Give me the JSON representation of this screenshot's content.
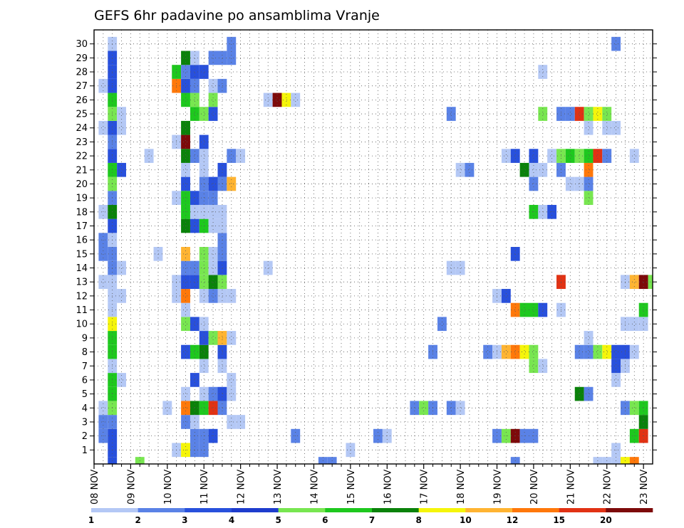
{
  "chart_data": {
    "type": "heatmap",
    "title": "GEFS 6hr padavine po ansamblima Vranje",
    "xlabel": "",
    "ylabel": "",
    "x_tick_labels": [
      "08 NOV",
      "09 NOV",
      "10 NOV",
      "11 NOV",
      "12 NOV",
      "13 NOV",
      "14 NOV",
      "15 NOV",
      "16 NOV",
      "17 NOV",
      "18 NOV",
      "19 NOV",
      "20 NOV",
      "21 NOV",
      "22 NOV",
      "23 NOV"
    ],
    "y_tick_labels": [
      "1",
      "2",
      "3",
      "4",
      "5",
      "6",
      "7",
      "8",
      "9",
      "10",
      "11",
      "12",
      "13",
      "14",
      "15",
      "16",
      "17",
      "18",
      "19",
      "20",
      "21",
      "22",
      "23",
      "24",
      "25",
      "26",
      "27",
      "28",
      "29",
      "30"
    ],
    "time_steps": 61,
    "members": 31,
    "steps_per_day": 4,
    "grid": true,
    "legend": {
      "position": "bottom",
      "labels": [
        "1",
        "2",
        "3",
        "4",
        "5",
        "6",
        "7",
        "8",
        "10",
        "12",
        "15",
        "20"
      ],
      "colors": [
        "#b4c8f5",
        "#5a82e6",
        "#2850dc",
        "#1e3ccd",
        "#78e650",
        "#1ec81e",
        "#0a820a",
        "#f5f50a",
        "#ffb432",
        "#ff780a",
        "#e13214",
        "#7d0a0a"
      ]
    },
    "palette_names": [
      "lt",
      "m",
      "b",
      "d",
      "lg",
      "g",
      "dg",
      "y",
      "o",
      "do",
      "r",
      "dr"
    ],
    "rows": {
      "0": [
        [
          2,
          "b"
        ],
        [
          5,
          "lg"
        ],
        [
          25,
          "m"
        ],
        [
          26,
          "m"
        ],
        [
          46,
          "m"
        ],
        [
          55,
          "lt"
        ],
        [
          56,
          "lt"
        ],
        [
          57,
          "lt"
        ],
        [
          58,
          "y"
        ],
        [
          59,
          "do"
        ]
      ],
      "1": [
        [
          2,
          "b"
        ],
        [
          9,
          "lt"
        ],
        [
          10,
          "y"
        ],
        [
          11,
          "m"
        ],
        [
          12,
          "m"
        ],
        [
          28,
          "lt"
        ],
        [
          57,
          "lt"
        ]
      ],
      "2": [
        [
          1,
          "m"
        ],
        [
          2,
          "b"
        ],
        [
          11,
          "m"
        ],
        [
          12,
          "m"
        ],
        [
          13,
          "b"
        ],
        [
          22,
          "m"
        ],
        [
          31,
          "m"
        ],
        [
          32,
          "lt"
        ],
        [
          44,
          "m"
        ],
        [
          45,
          "lg"
        ],
        [
          46,
          "dr"
        ],
        [
          47,
          "m"
        ],
        [
          48,
          "m"
        ],
        [
          59,
          "g"
        ],
        [
          60,
          "r"
        ]
      ],
      "3": [
        [
          1,
          "m"
        ],
        [
          2,
          "m"
        ],
        [
          10,
          "m"
        ],
        [
          11,
          "lt"
        ],
        [
          15,
          "lt"
        ],
        [
          16,
          "lt"
        ],
        [
          60,
          "dg"
        ]
      ],
      "4": [
        [
          1,
          "lt"
        ],
        [
          2,
          "lg"
        ],
        [
          8,
          "lt"
        ],
        [
          10,
          "do"
        ],
        [
          11,
          "dg"
        ],
        [
          12,
          "g"
        ],
        [
          13,
          "r"
        ],
        [
          14,
          "m"
        ],
        [
          35,
          "m"
        ],
        [
          36,
          "lg"
        ],
        [
          37,
          "m"
        ],
        [
          39,
          "m"
        ],
        [
          40,
          "lt"
        ],
        [
          58,
          "m"
        ],
        [
          59,
          "lg"
        ],
        [
          60,
          "g"
        ]
      ],
      "5": [
        [
          2,
          "g"
        ],
        [
          10,
          "lt"
        ],
        [
          12,
          "lt"
        ],
        [
          13,
          "m"
        ],
        [
          14,
          "b"
        ],
        [
          15,
          "lt"
        ],
        [
          53,
          "dg"
        ],
        [
          54,
          "m"
        ]
      ],
      "6": [
        [
          2,
          "g"
        ],
        [
          3,
          "lt"
        ],
        [
          11,
          "b"
        ],
        [
          15,
          "lt"
        ],
        [
          57,
          "lt"
        ]
      ],
      "7": [
        [
          2,
          "lt"
        ],
        [
          12,
          "lt"
        ],
        [
          14,
          "lt"
        ],
        [
          48,
          "lg"
        ],
        [
          49,
          "lt"
        ],
        [
          57,
          "b"
        ],
        [
          58,
          "lt"
        ]
      ],
      "8": [
        [
          2,
          "g"
        ],
        [
          10,
          "b"
        ],
        [
          11,
          "g"
        ],
        [
          12,
          "dg"
        ],
        [
          14,
          "b"
        ],
        [
          37,
          "m"
        ],
        [
          43,
          "m"
        ],
        [
          44,
          "lt"
        ],
        [
          45,
          "o"
        ],
        [
          46,
          "do"
        ],
        [
          47,
          "y"
        ],
        [
          48,
          "lg"
        ],
        [
          53,
          "m"
        ],
        [
          54,
          "m"
        ],
        [
          55,
          "lg"
        ],
        [
          56,
          "y"
        ],
        [
          57,
          "b"
        ],
        [
          58,
          "b"
        ],
        [
          59,
          "lt"
        ]
      ],
      "9": [
        [
          2,
          "g"
        ],
        [
          12,
          "b"
        ],
        [
          13,
          "lg"
        ],
        [
          14,
          "o"
        ],
        [
          15,
          "lt"
        ],
        [
          54,
          "lt"
        ]
      ],
      "10": [
        [
          2,
          "y"
        ],
        [
          10,
          "lg"
        ],
        [
          11,
          "b"
        ],
        [
          12,
          "lt"
        ],
        [
          38,
          "m"
        ],
        [
          58,
          "lt"
        ],
        [
          59,
          "lt"
        ],
        [
          60,
          "lt"
        ]
      ],
      "11": [
        [
          2,
          "lt"
        ],
        [
          10,
          "lt"
        ],
        [
          46,
          "do"
        ],
        [
          47,
          "g"
        ],
        [
          48,
          "g"
        ],
        [
          49,
          "b"
        ],
        [
          51,
          "lt"
        ],
        [
          60,
          "g"
        ]
      ],
      "12": [
        [
          2,
          "lt"
        ],
        [
          3,
          "lt"
        ],
        [
          9,
          "lt"
        ],
        [
          10,
          "do"
        ],
        [
          12,
          "lt"
        ],
        [
          13,
          "m"
        ],
        [
          14,
          "lt"
        ],
        [
          15,
          "lt"
        ],
        [
          44,
          "lt"
        ],
        [
          45,
          "b"
        ]
      ],
      "13": [
        [
          1,
          "lt"
        ],
        [
          2,
          "lt"
        ],
        [
          9,
          "lt"
        ],
        [
          10,
          "b"
        ],
        [
          11,
          "b"
        ],
        [
          12,
          "lg"
        ],
        [
          13,
          "dg"
        ],
        [
          14,
          "lg"
        ],
        [
          51,
          "r"
        ],
        [
          58,
          "lt"
        ],
        [
          59,
          "o"
        ],
        [
          60,
          "dr"
        ],
        [
          61,
          "lg"
        ]
      ],
      "14": [
        [
          2,
          "m"
        ],
        [
          3,
          "lt"
        ],
        [
          10,
          "m"
        ],
        [
          11,
          "m"
        ],
        [
          12,
          "lg"
        ],
        [
          13,
          "lt"
        ],
        [
          14,
          "b"
        ],
        [
          19,
          "lt"
        ],
        [
          39,
          "lt"
        ],
        [
          40,
          "lt"
        ]
      ],
      "15": [
        [
          1,
          "m"
        ],
        [
          2,
          "m"
        ],
        [
          7,
          "lt"
        ],
        [
          10,
          "o"
        ],
        [
          12,
          "lg"
        ],
        [
          13,
          "lt"
        ],
        [
          14,
          "m"
        ],
        [
          46,
          "b"
        ]
      ],
      "16": [
        [
          1,
          "m"
        ],
        [
          2,
          "lt"
        ],
        [
          14,
          "m"
        ]
      ],
      "17": [
        [
          2,
          "b"
        ],
        [
          10,
          "dg"
        ],
        [
          11,
          "b"
        ],
        [
          12,
          "g"
        ],
        [
          13,
          "lt"
        ],
        [
          14,
          "lt"
        ]
      ],
      "18": [
        [
          1,
          "lt"
        ],
        [
          2,
          "dg"
        ],
        [
          10,
          "g"
        ],
        [
          11,
          "lt"
        ],
        [
          12,
          "lt"
        ],
        [
          13,
          "lt"
        ],
        [
          14,
          "lt"
        ],
        [
          48,
          "g"
        ],
        [
          49,
          "lt"
        ],
        [
          50,
          "b"
        ]
      ],
      "19": [
        [
          2,
          "m"
        ],
        [
          9,
          "lt"
        ],
        [
          10,
          "g"
        ],
        [
          11,
          "b"
        ],
        [
          12,
          "m"
        ],
        [
          13,
          "m"
        ],
        [
          54,
          "lg"
        ]
      ],
      "20": [
        [
          2,
          "lg"
        ],
        [
          10,
          "b"
        ],
        [
          12,
          "m"
        ],
        [
          13,
          "b"
        ],
        [
          14,
          "m"
        ],
        [
          15,
          "o"
        ],
        [
          48,
          "m"
        ],
        [
          52,
          "lt"
        ],
        [
          53,
          "lt"
        ],
        [
          54,
          "m"
        ]
      ],
      "21": [
        [
          2,
          "g"
        ],
        [
          3,
          "b"
        ],
        [
          10,
          "lt"
        ],
        [
          12,
          "lt"
        ],
        [
          14,
          "b"
        ],
        [
          40,
          "lt"
        ],
        [
          41,
          "m"
        ],
        [
          47,
          "dg"
        ],
        [
          48,
          "lt"
        ],
        [
          49,
          "lt"
        ],
        [
          51,
          "m"
        ],
        [
          54,
          "do"
        ]
      ],
      "22": [
        [
          2,
          "b"
        ],
        [
          6,
          "lt"
        ],
        [
          10,
          "dg"
        ],
        [
          11,
          "m"
        ],
        [
          12,
          "lt"
        ],
        [
          15,
          "m"
        ],
        [
          16,
          "lt"
        ],
        [
          45,
          "lt"
        ],
        [
          46,
          "b"
        ],
        [
          48,
          "b"
        ],
        [
          50,
          "lt"
        ],
        [
          51,
          "lg"
        ],
        [
          52,
          "g"
        ],
        [
          53,
          "lg"
        ],
        [
          54,
          "g"
        ],
        [
          55,
          "r"
        ],
        [
          56,
          "m"
        ],
        [
          59,
          "lt"
        ]
      ],
      "23": [
        [
          2,
          "m"
        ],
        [
          9,
          "lt"
        ],
        [
          10,
          "dr"
        ],
        [
          12,
          "b"
        ]
      ],
      "24": [
        [
          1,
          "lt"
        ],
        [
          2,
          "b"
        ],
        [
          3,
          "lt"
        ],
        [
          10,
          "dg"
        ],
        [
          54,
          "lt"
        ],
        [
          56,
          "lt"
        ],
        [
          57,
          "lt"
        ]
      ],
      "25": [
        [
          2,
          "lg"
        ],
        [
          3,
          "lt"
        ],
        [
          11,
          "g"
        ],
        [
          12,
          "lg"
        ],
        [
          13,
          "b"
        ],
        [
          39,
          "m"
        ],
        [
          49,
          "lg"
        ],
        [
          51,
          "m"
        ],
        [
          52,
          "m"
        ],
        [
          53,
          "r"
        ],
        [
          54,
          "lg"
        ],
        [
          55,
          "y"
        ],
        [
          56,
          "lg"
        ]
      ],
      "26": [
        [
          2,
          "g"
        ],
        [
          10,
          "g"
        ],
        [
          11,
          "lg"
        ],
        [
          13,
          "lg"
        ],
        [
          19,
          "lt"
        ],
        [
          20,
          "dr"
        ],
        [
          21,
          "y"
        ],
        [
          22,
          "lt"
        ]
      ],
      "27": [
        [
          1,
          "lt"
        ],
        [
          2,
          "b"
        ],
        [
          9,
          "do"
        ],
        [
          10,
          "b"
        ],
        [
          11,
          "m"
        ],
        [
          13,
          "lt"
        ],
        [
          14,
          "m"
        ]
      ],
      "28": [
        [
          2,
          "b"
        ],
        [
          9,
          "g"
        ],
        [
          10,
          "m"
        ],
        [
          11,
          "b"
        ],
        [
          12,
          "b"
        ],
        [
          49,
          "lt"
        ]
      ],
      "29": [
        [
          2,
          "b"
        ],
        [
          10,
          "dg"
        ],
        [
          11,
          "lt"
        ],
        [
          13,
          "m"
        ],
        [
          14,
          "m"
        ],
        [
          15,
          "m"
        ]
      ],
      "30": [
        [
          2,
          "lt"
        ],
        [
          15,
          "m"
        ],
        [
          57,
          "m"
        ]
      ]
    }
  }
}
